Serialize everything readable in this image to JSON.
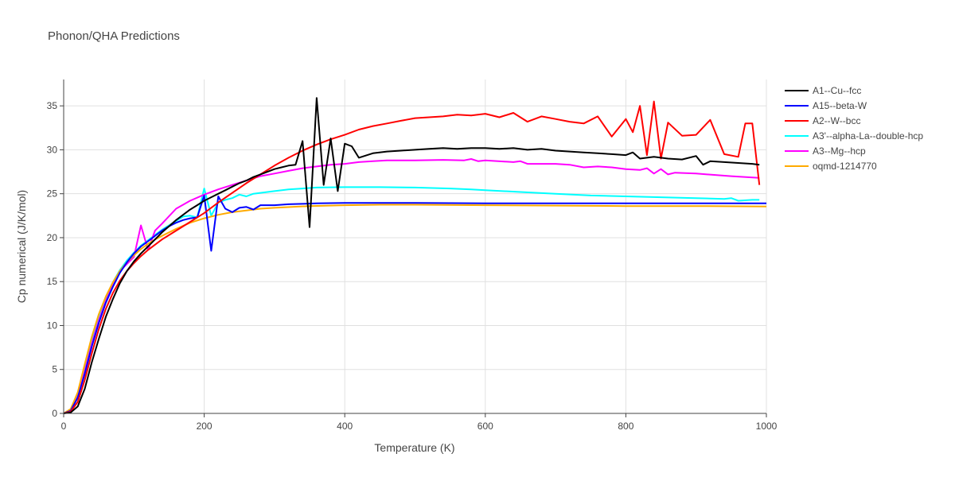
{
  "chart_data": {
    "type": "line",
    "title": "Phonon/QHA Predictions",
    "xlabel": "Temperature (K)",
    "ylabel": "Cp numerical (J/K/mol)",
    "xlim": [
      0,
      1000
    ],
    "ylim": [
      0,
      38
    ],
    "x_ticks": [
      0,
      200,
      400,
      600,
      800,
      1000
    ],
    "y_ticks": [
      0,
      5,
      10,
      15,
      20,
      25,
      30,
      35
    ],
    "grid": true,
    "legend_position": "top-right",
    "series": [
      {
        "name": "A1--Cu--fcc",
        "color": "#000000",
        "x": [
          0,
          10,
          20,
          30,
          40,
          50,
          60,
          70,
          80,
          90,
          100,
          110,
          120,
          130,
          140,
          150,
          160,
          170,
          180,
          190,
          200,
          210,
          220,
          230,
          240,
          250,
          260,
          270,
          280,
          290,
          300,
          310,
          320,
          330,
          340,
          350,
          360,
          370,
          380,
          390,
          400,
          410,
          420,
          440,
          460,
          480,
          500,
          520,
          540,
          560,
          580,
          600,
          620,
          640,
          660,
          680,
          700,
          720,
          740,
          760,
          780,
          800,
          810,
          820,
          840,
          860,
          880,
          900,
          910,
          920,
          940,
          960,
          980,
          990
        ],
        "y": [
          0,
          0.1,
          0.8,
          2.8,
          5.8,
          8.5,
          11.0,
          13.0,
          14.8,
          16.2,
          17.3,
          18.2,
          19.0,
          19.8,
          20.6,
          21.3,
          22.0,
          22.6,
          23.2,
          23.7,
          24.2,
          24.6,
          25.0,
          25.4,
          25.8,
          26.2,
          26.5,
          26.9,
          27.2,
          27.5,
          27.8,
          28.0,
          28.2,
          28.3,
          31.0,
          21.2,
          35.9,
          26.0,
          31.3,
          25.3,
          30.7,
          30.4,
          29.1,
          29.6,
          29.8,
          29.9,
          30.0,
          30.1,
          30.2,
          30.1,
          30.2,
          30.2,
          30.1,
          30.2,
          30.0,
          30.1,
          29.9,
          29.8,
          29.7,
          29.6,
          29.5,
          29.4,
          29.7,
          29.0,
          29.2,
          29.0,
          28.9,
          29.3,
          28.3,
          28.7,
          28.6,
          28.5,
          28.4,
          28.3
        ]
      },
      {
        "name": "A15--beta-W",
        "color": "#0000ff",
        "x": [
          0,
          10,
          20,
          30,
          40,
          50,
          60,
          70,
          80,
          90,
          100,
          110,
          120,
          130,
          140,
          150,
          160,
          170,
          180,
          190,
          200,
          210,
          220,
          230,
          240,
          250,
          260,
          270,
          280,
          300,
          320,
          340,
          360,
          400,
          440,
          500,
          600,
          700,
          800,
          900,
          1000
        ],
        "y": [
          0,
          0.3,
          1.8,
          4.5,
          7.6,
          10.3,
          12.6,
          14.4,
          16.0,
          17.2,
          18.2,
          19.0,
          19.6,
          20.2,
          20.8,
          21.3,
          21.7,
          22.0,
          22.2,
          22.3,
          24.8,
          18.5,
          24.7,
          23.3,
          22.9,
          23.4,
          23.5,
          23.2,
          23.7,
          23.7,
          23.8,
          23.85,
          23.9,
          23.95,
          23.95,
          23.95,
          23.9,
          23.9,
          23.9,
          23.9,
          23.9
        ]
      },
      {
        "name": "A2--W--bcc",
        "color": "#ff0000",
        "x": [
          0,
          10,
          20,
          30,
          40,
          50,
          60,
          70,
          80,
          90,
          100,
          110,
          120,
          130,
          140,
          160,
          180,
          200,
          220,
          240,
          260,
          280,
          300,
          320,
          340,
          360,
          380,
          400,
          420,
          440,
          460,
          480,
          500,
          520,
          540,
          560,
          580,
          600,
          620,
          640,
          660,
          680,
          700,
          720,
          740,
          760,
          780,
          800,
          810,
          820,
          830,
          840,
          850,
          860,
          880,
          900,
          920,
          940,
          960,
          970,
          980,
          990
        ],
        "y": [
          0,
          0.2,
          1.3,
          3.8,
          6.8,
          9.6,
          11.9,
          13.7,
          15.1,
          16.2,
          17.1,
          17.9,
          18.6,
          19.2,
          19.8,
          20.8,
          21.8,
          22.8,
          24.0,
          25.1,
          26.2,
          27.2,
          28.2,
          29.1,
          29.9,
          30.6,
          31.2,
          31.7,
          32.3,
          32.7,
          33.0,
          33.3,
          33.6,
          33.7,
          33.8,
          34.0,
          33.9,
          34.1,
          33.7,
          34.2,
          33.2,
          33.8,
          33.5,
          33.2,
          33.0,
          33.8,
          31.5,
          33.5,
          32.0,
          35.0,
          29.4,
          35.5,
          29.0,
          33.1,
          31.6,
          31.7,
          33.4,
          29.5,
          29.2,
          33.0,
          33.0,
          26.0
        ]
      },
      {
        "name": "A3'--alpha-La--double-hcp",
        "color": "#00ffff",
        "x": [
          0,
          10,
          20,
          30,
          40,
          50,
          60,
          70,
          80,
          90,
          100,
          110,
          120,
          130,
          140,
          150,
          160,
          170,
          180,
          190,
          200,
          210,
          220,
          230,
          240,
          250,
          260,
          270,
          280,
          300,
          320,
          340,
          360,
          400,
          450,
          500,
          550,
          580,
          600,
          650,
          700,
          750,
          800,
          850,
          900,
          940,
          950,
          960,
          980,
          990
        ],
        "y": [
          0,
          0.4,
          2.2,
          5.3,
          8.4,
          11.0,
          13.2,
          14.9,
          16.3,
          17.4,
          18.3,
          19.1,
          19.7,
          20.3,
          20.9,
          21.4,
          21.9,
          22.4,
          22.5,
          22.3,
          25.6,
          22.5,
          24.0,
          24.3,
          24.5,
          24.9,
          24.7,
          25.0,
          25.1,
          25.3,
          25.5,
          25.6,
          25.7,
          25.75,
          25.75,
          25.7,
          25.6,
          25.5,
          25.4,
          25.2,
          25.0,
          24.8,
          24.7,
          24.6,
          24.5,
          24.4,
          24.5,
          24.2,
          24.3,
          24.3
        ]
      },
      {
        "name": "A3--Mg--hcp",
        "color": "#ff00ff",
        "x": [
          0,
          10,
          20,
          30,
          40,
          50,
          60,
          70,
          80,
          90,
          100,
          110,
          120,
          130,
          140,
          160,
          180,
          200,
          220,
          240,
          260,
          280,
          300,
          320,
          340,
          360,
          380,
          400,
          420,
          440,
          460,
          480,
          500,
          540,
          570,
          580,
          590,
          600,
          640,
          650,
          660,
          700,
          720,
          740,
          760,
          780,
          800,
          820,
          830,
          840,
          850,
          860,
          870,
          900,
          950,
          990
        ],
        "y": [
          0,
          0.3,
          1.9,
          4.8,
          7.9,
          10.6,
          12.8,
          14.6,
          16.2,
          17.0,
          17.8,
          21.4,
          18.6,
          20.8,
          21.6,
          23.3,
          24.2,
          24.9,
          25.5,
          26.0,
          26.5,
          27.0,
          27.3,
          27.6,
          27.9,
          28.1,
          28.3,
          28.4,
          28.6,
          28.7,
          28.8,
          28.8,
          28.8,
          28.85,
          28.8,
          28.95,
          28.7,
          28.8,
          28.6,
          28.7,
          28.4,
          28.4,
          28.3,
          28.0,
          28.1,
          28.0,
          27.8,
          27.7,
          27.9,
          27.3,
          27.8,
          27.2,
          27.4,
          27.3,
          27.0,
          26.8
        ]
      },
      {
        "name": "oqmd-1214770",
        "color": "#ffaa00",
        "x": [
          0,
          10,
          20,
          30,
          40,
          50,
          60,
          70,
          80,
          90,
          100,
          110,
          120,
          130,
          140,
          160,
          180,
          200,
          220,
          240,
          260,
          280,
          300,
          350,
          400,
          450,
          500,
          600,
          700,
          800,
          900,
          1000
        ],
        "y": [
          0,
          0.5,
          2.4,
          5.6,
          8.7,
          11.3,
          13.3,
          14.9,
          16.2,
          17.2,
          18.0,
          18.7,
          19.3,
          19.8,
          20.2,
          21.0,
          21.7,
          22.2,
          22.6,
          22.9,
          23.1,
          23.3,
          23.4,
          23.6,
          23.7,
          23.75,
          23.75,
          23.7,
          23.65,
          23.6,
          23.6,
          23.55
        ]
      }
    ]
  }
}
